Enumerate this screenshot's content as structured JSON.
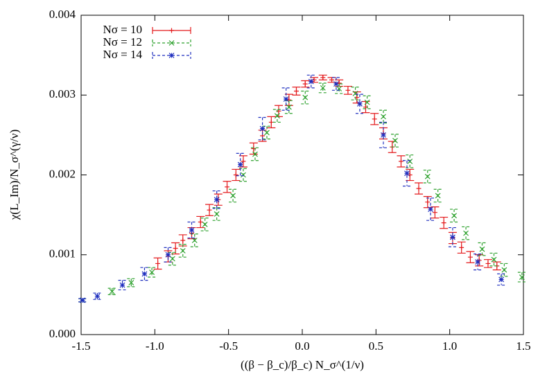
{
  "chart_data": {
    "type": "errorbar",
    "xlabel": "((β − β_c)/β_c) N_σ^(1/ν)",
    "ylabel": "χ(L_Im)/N_σ^(γ/ν)",
    "xlim": [
      -1.5,
      1.5
    ],
    "ylim": [
      0,
      0.004
    ],
    "xticks": [
      {
        "value": -1.5,
        "label": "-1.5"
      },
      {
        "value": -1.0,
        "label": "-1.0"
      },
      {
        "value": -0.5,
        "label": "-0.5"
      },
      {
        "value": 0,
        "label": "0.0"
      },
      {
        "value": 0.5,
        "label": "0.5"
      },
      {
        "value": 1.0,
        "label": "1.0"
      },
      {
        "value": 1.5,
        "label": "1.5"
      }
    ],
    "yticks": [
      {
        "value": 0,
        "label": "0.000"
      },
      {
        "value": 0.001,
        "label": "0.001"
      },
      {
        "value": 0.002,
        "label": "0.002"
      },
      {
        "value": 0.003,
        "label": "0.003"
      },
      {
        "value": 0.004,
        "label": "0.004"
      }
    ],
    "legend": "top-left",
    "series": [
      {
        "name": "Nσ = 10",
        "color": "#e41a1c",
        "marker": "plus",
        "dashed": false,
        "x": [
          -0.98,
          -0.91,
          -0.86,
          -0.81,
          -0.75,
          -0.69,
          -0.63,
          -0.57,
          -0.51,
          -0.45,
          -0.4,
          -0.33,
          -0.27,
          -0.21,
          -0.16,
          -0.09,
          -0.04,
          0.02,
          0.08,
          0.14,
          0.2,
          0.25,
          0.31,
          0.37,
          0.43,
          0.49,
          0.55,
          0.61,
          0.67,
          0.73,
          0.79,
          0.85,
          0.9,
          0.96,
          1.02,
          1.08,
          1.14,
          1.2,
          1.26,
          1.32
        ],
        "values": [
          0.00089,
          0.00098,
          0.00108,
          0.00118,
          0.00127,
          0.00141,
          0.00156,
          0.00169,
          0.00185,
          0.002,
          0.00217,
          0.00233,
          0.00249,
          0.00266,
          0.0028,
          0.00294,
          0.00305,
          0.00314,
          0.00319,
          0.00322,
          0.00319,
          0.00315,
          0.00306,
          0.00297,
          0.00285,
          0.0027,
          0.00252,
          0.00235,
          0.00217,
          0.002,
          0.00183,
          0.00166,
          0.00153,
          0.0014,
          0.00121,
          0.00109,
          0.00097,
          0.00093,
          0.00089,
          0.00086
        ],
        "errors": [
          7e-05,
          7e-05,
          7e-05,
          7e-05,
          7e-05,
          7e-05,
          7e-05,
          7e-05,
          7e-05,
          7e-05,
          7e-05,
          7e-05,
          7e-05,
          7e-05,
          7e-05,
          7e-05,
          5e-05,
          4e-05,
          3e-05,
          3e-05,
          3e-05,
          4e-05,
          5e-05,
          7e-05,
          7e-05,
          7e-05,
          7e-05,
          7e-05,
          7e-05,
          7e-05,
          7e-05,
          7e-05,
          7e-05,
          7e-05,
          7e-05,
          7e-05,
          7e-05,
          7e-05,
          5e-05,
          5e-05
        ]
      },
      {
        "name": "Nσ = 12",
        "color": "#2ca02c",
        "marker": "cross",
        "dashed": true,
        "x": [
          -1.49,
          -1.29,
          -1.16,
          -1.02,
          -0.88,
          -0.81,
          -0.73,
          -0.66,
          -0.58,
          -0.47,
          -0.4,
          -0.32,
          -0.24,
          -0.17,
          -0.09,
          0.02,
          0.14,
          0.25,
          0.36,
          0.44,
          0.55,
          0.63,
          0.73,
          0.85,
          0.92,
          1.03,
          1.11,
          1.22,
          1.3,
          1.37,
          1.49
        ],
        "values": [
          0.00043,
          0.00054,
          0.00065,
          0.00078,
          0.00095,
          0.00105,
          0.00118,
          0.00138,
          0.00151,
          0.00174,
          0.002,
          0.00226,
          0.00253,
          0.00274,
          0.00285,
          0.00297,
          0.00309,
          0.00308,
          0.00302,
          0.00291,
          0.00273,
          0.00243,
          0.00217,
          0.00198,
          0.00174,
          0.00149,
          0.00127,
          0.00107,
          0.00094,
          0.00081,
          0.00072
        ],
        "errors": [
          2e-05,
          4e-05,
          5e-05,
          6e-05,
          8e-05,
          8e-05,
          8e-05,
          8e-05,
          8e-05,
          8e-05,
          8e-05,
          8e-05,
          8e-05,
          8e-05,
          8e-05,
          8e-05,
          6e-05,
          6e-05,
          8e-05,
          8e-05,
          8e-05,
          8e-05,
          8e-05,
          8e-05,
          8e-05,
          8e-05,
          8e-05,
          8e-05,
          8e-05,
          8e-05,
          6e-05
        ]
      },
      {
        "name": "Nσ = 14",
        "color": "#1f2fbf",
        "marker": "star",
        "dashed": true,
        "x": [
          -1.49,
          -1.39,
          -1.22,
          -1.07,
          -0.91,
          -0.75,
          -0.58,
          -0.42,
          -0.27,
          -0.11,
          0.06,
          0.23,
          0.39,
          0.55,
          0.71,
          0.87,
          1.02,
          1.19,
          1.35
        ],
        "values": [
          0.00043,
          0.00048,
          0.00062,
          0.00076,
          0.001,
          0.00131,
          0.00169,
          0.00213,
          0.00258,
          0.00295,
          0.00317,
          0.00314,
          0.00289,
          0.0025,
          0.00202,
          0.00157,
          0.00122,
          0.00091,
          0.00069
        ],
        "errors": [
          2e-05,
          4e-05,
          6e-05,
          8e-05,
          9e-05,
          0.0001,
          0.00011,
          0.00014,
          0.00014,
          0.00014,
          8e-05,
          8e-05,
          0.00012,
          0.00016,
          0.00016,
          0.00014,
          0.00012,
          0.0001,
          7e-05
        ]
      }
    ]
  }
}
